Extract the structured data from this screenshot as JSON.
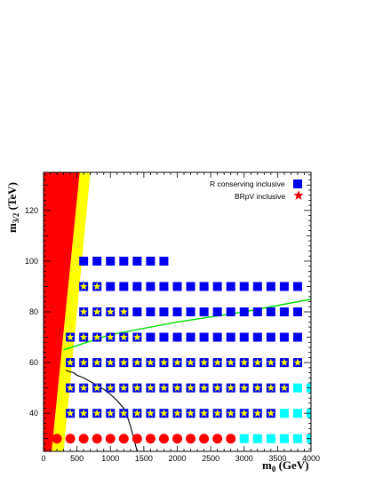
{
  "chart_data": {
    "type": "scatter",
    "xlabel": "m",
    "xlabel_sub": "0",
    "xlabel_unit": " (GeV)",
    "ylabel": "m",
    "ylabel_sub": "3/2",
    "ylabel_unit": " (TeV)",
    "xlim": [
      0,
      4000
    ],
    "ylim": [
      25,
      135
    ],
    "x_ticks": [
      0,
      500,
      1000,
      1500,
      2000,
      2500,
      3000,
      3500,
      4000
    ],
    "y_ticks": [
      40,
      60,
      80,
      100,
      120
    ],
    "grid": false,
    "legend_position": "top-right",
    "legend": [
      {
        "label": "R conserving inclusive",
        "symbol": "blue-square",
        "color": "#0000ee"
      },
      {
        "label": "BRpV inclusive",
        "symbol": "red-star",
        "color": "#ee0000"
      }
    ],
    "colors": {
      "excluded_red": "#ff0000",
      "excluded_yellow": "#ffff00",
      "square_blue": "#0000ee",
      "square_cyan": "#00ffff",
      "star_yellow": "#ffff00",
      "circle_red": "#ff0000",
      "line_green": "#00dd00",
      "line_black": "#000000"
    },
    "excluded_regions": {
      "red_boundary": [
        [
          0,
          25
        ],
        [
          120,
          25
        ],
        [
          540,
          135
        ],
        [
          0,
          135
        ]
      ],
      "yellow_boundary": [
        [
          120,
          25
        ],
        [
          300,
          25
        ],
        [
          700,
          135
        ],
        [
          540,
          135
        ]
      ]
    },
    "marker_rows": [
      {
        "y": 100,
        "groups": [
          {
            "marker": "blue-square",
            "x_start": 600,
            "x_end": 1800
          }
        ]
      },
      {
        "y": 90,
        "groups": [
          {
            "marker": "blue-square-star",
            "x_start": 600,
            "x_end": 800
          },
          {
            "marker": "blue-square",
            "x_start": 1000,
            "x_end": 3800
          }
        ]
      },
      {
        "y": 80,
        "groups": [
          {
            "marker": "blue-square-star",
            "x_start": 600,
            "x_end": 1200
          },
          {
            "marker": "blue-square",
            "x_start": 1400,
            "x_end": 3800
          }
        ]
      },
      {
        "y": 70,
        "groups": [
          {
            "marker": "blue-square-star",
            "x_start": 400,
            "x_end": 1400
          },
          {
            "marker": "blue-square",
            "x_start": 1600,
            "x_end": 3800
          }
        ]
      },
      {
        "y": 60,
        "groups": [
          {
            "marker": "blue-square-star",
            "x_start": 400,
            "x_end": 3800
          }
        ]
      },
      {
        "y": 50,
        "groups": [
          {
            "marker": "blue-square-star",
            "x_start": 400,
            "x_end": 3600
          },
          {
            "marker": "cyan-square",
            "x_start": 3800,
            "x_end": 4000
          }
        ]
      },
      {
        "y": 40,
        "groups": [
          {
            "marker": "blue-square-star",
            "x_start": 400,
            "x_end": 3400
          },
          {
            "marker": "cyan-square",
            "x_start": 3600,
            "x_end": 4000
          }
        ]
      },
      {
        "y": 30,
        "groups": [
          {
            "marker": "red-circle",
            "x_start": 200,
            "x_end": 2800
          },
          {
            "marker": "cyan-square",
            "x_start": 3000,
            "x_end": 4000
          }
        ]
      }
    ],
    "curves": [
      {
        "color": "green",
        "points": [
          [
            300,
            65
          ],
          [
            1000,
            71
          ],
          [
            2000,
            76
          ],
          [
            3000,
            80
          ],
          [
            4000,
            85
          ]
        ]
      },
      {
        "color": "black",
        "points": [
          [
            330,
            57
          ],
          [
            380,
            56.5
          ],
          [
            450,
            56
          ],
          [
            500,
            55
          ],
          [
            600,
            54
          ],
          [
            700,
            52.5
          ],
          [
            800,
            51
          ],
          [
            900,
            49.5
          ],
          [
            1000,
            47.5
          ],
          [
            1100,
            45
          ],
          [
            1200,
            42
          ],
          [
            1250,
            39
          ],
          [
            1300,
            35
          ],
          [
            1350,
            30
          ],
          [
            1400,
            25
          ]
        ]
      }
    ]
  }
}
